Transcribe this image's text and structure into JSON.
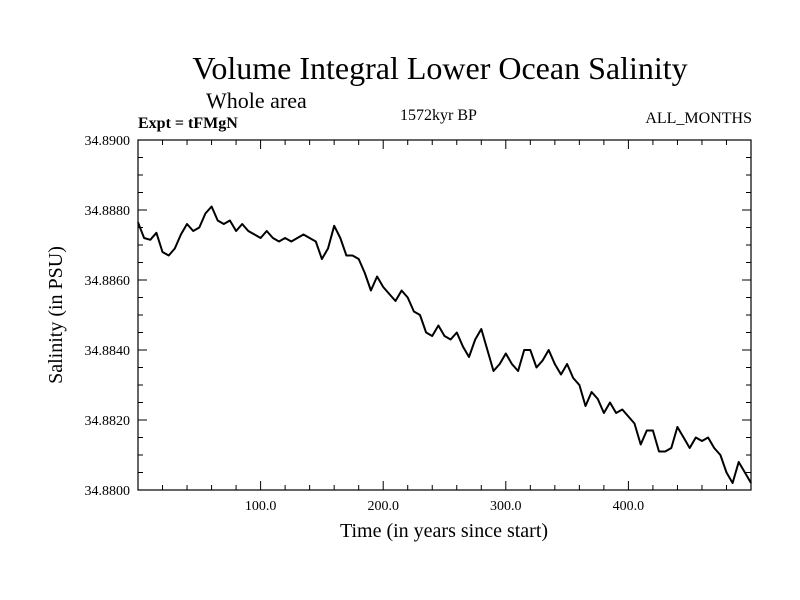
{
  "header": {
    "title": "Volume Integral Lower Ocean Salinity",
    "subtitle": "Whole area",
    "experiment": "Expt = tFMgN",
    "period": "1572kyr BP",
    "months": "ALL_MONTHS"
  },
  "chart_data": {
    "type": "line",
    "title": "Volume Integral Lower Ocean Salinity",
    "xlabel": "Time (in years since start)",
    "ylabel": "Salinity (in PSU)",
    "xlim": [
      0,
      500
    ],
    "ylim": [
      34.88,
      34.89
    ],
    "x_ticks": [
      100,
      200,
      300,
      400
    ],
    "x_tick_labels": [
      "100.0",
      "200.0",
      "300.0",
      "400.0"
    ],
    "y_ticks": [
      34.88,
      34.882,
      34.884,
      34.886,
      34.888,
      34.89
    ],
    "y_tick_labels": [
      "34.8800",
      "34.8820",
      "34.8840",
      "34.8860",
      "34.8880",
      "34.8900"
    ],
    "grid": false,
    "series": [
      {
        "name": "Salinity",
        "x": [
          0,
          5,
          10,
          15,
          20,
          25,
          30,
          35,
          40,
          45,
          50,
          55,
          60,
          65,
          70,
          75,
          80,
          85,
          90,
          95,
          100,
          105,
          110,
          115,
          120,
          125,
          130,
          135,
          140,
          145,
          150,
          155,
          160,
          165,
          170,
          175,
          180,
          185,
          190,
          195,
          200,
          205,
          210,
          215,
          220,
          225,
          230,
          235,
          240,
          245,
          250,
          255,
          260,
          265,
          270,
          275,
          280,
          285,
          290,
          295,
          300,
          305,
          310,
          315,
          320,
          325,
          330,
          335,
          340,
          345,
          350,
          355,
          360,
          365,
          370,
          375,
          380,
          385,
          390,
          395,
          400,
          405,
          410,
          415,
          420,
          425,
          430,
          435,
          440,
          445,
          450,
          455,
          460,
          465,
          470,
          475,
          480,
          485,
          490,
          495,
          500
        ],
        "values": [
          34.88765,
          34.8872,
          34.88715,
          34.88735,
          34.8868,
          34.8867,
          34.8869,
          34.8873,
          34.8876,
          34.8874,
          34.8875,
          34.8879,
          34.8881,
          34.8877,
          34.8876,
          34.8877,
          34.8874,
          34.8876,
          34.8874,
          34.8873,
          34.8872,
          34.8874,
          34.8872,
          34.8871,
          34.8872,
          34.8871,
          34.8872,
          34.8873,
          34.8872,
          34.8871,
          34.8866,
          34.8869,
          34.88755,
          34.8872,
          34.8867,
          34.8867,
          34.8866,
          34.8862,
          34.8857,
          34.8861,
          34.8858,
          34.8856,
          34.8854,
          34.8857,
          34.8855,
          34.8851,
          34.885,
          34.8845,
          34.8844,
          34.8847,
          34.8844,
          34.8843,
          34.8845,
          34.8841,
          34.8838,
          34.8843,
          34.8846,
          34.884,
          34.8834,
          34.8836,
          34.8839,
          34.8836,
          34.8834,
          34.884,
          34.884,
          34.8835,
          34.8837,
          34.884,
          34.8836,
          34.8833,
          34.8836,
          34.8832,
          34.883,
          34.8824,
          34.8828,
          34.8826,
          34.8822,
          34.8825,
          34.8822,
          34.8823,
          34.8821,
          34.8819,
          34.8813,
          34.8817,
          34.8817,
          34.8811,
          34.8811,
          34.8812,
          34.8818,
          34.8815,
          34.8812,
          34.8815,
          34.8814,
          34.8815,
          34.8812,
          34.881,
          34.8805,
          34.8802,
          34.8808,
          34.8805,
          34.8802
        ]
      }
    ]
  }
}
